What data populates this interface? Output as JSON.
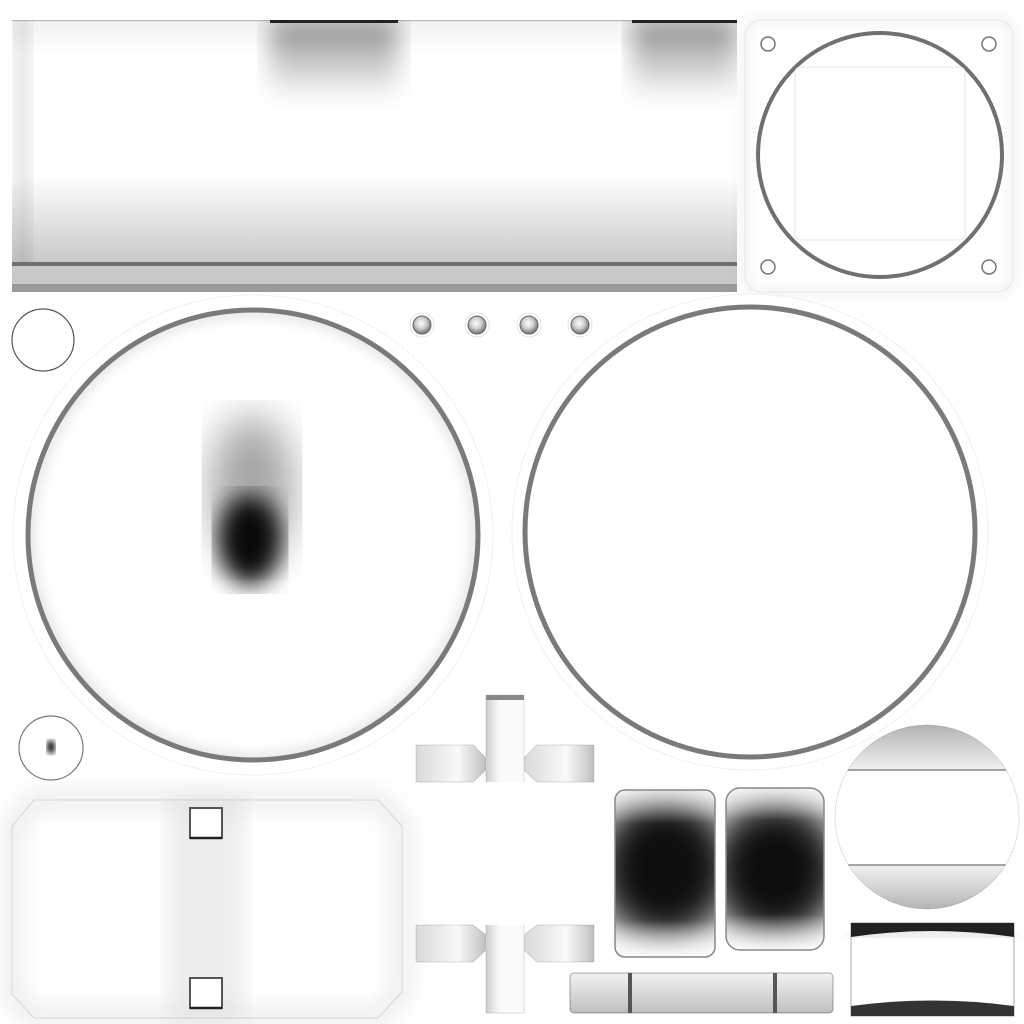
{
  "atlas": {
    "type": "ambient-occlusion-texture",
    "background_color": "#ffffff",
    "shadow_color": "#000000",
    "edge_color": "#6f6f6f"
  },
  "islands": [
    {
      "name": "wide-strip-island",
      "shape": "rectangle"
    },
    {
      "name": "cap-plate-island",
      "shape": "rounded-square-with-circle"
    },
    {
      "name": "small-ring-island",
      "shape": "circle"
    },
    {
      "name": "bolt-dots-island",
      "shape": "circles",
      "count": 4
    },
    {
      "name": "left-disc-island",
      "shape": "circle-with-dark-spot"
    },
    {
      "name": "right-disc-island",
      "shape": "circle"
    },
    {
      "name": "tiny-disc-island",
      "shape": "circle-with-dark-spot"
    },
    {
      "name": "octagon-panel-island",
      "shape": "octagon-with-square-holes"
    },
    {
      "name": "cross-island",
      "shape": "cross"
    },
    {
      "name": "dark-block-island",
      "shape": "rounded-rectangle",
      "count": 2
    },
    {
      "name": "bottom-bar-island",
      "shape": "rectangle"
    },
    {
      "name": "clipped-circle-island",
      "shape": "clipped-circle"
    },
    {
      "name": "curved-rect-island",
      "shape": "curved-rectangle"
    }
  ]
}
